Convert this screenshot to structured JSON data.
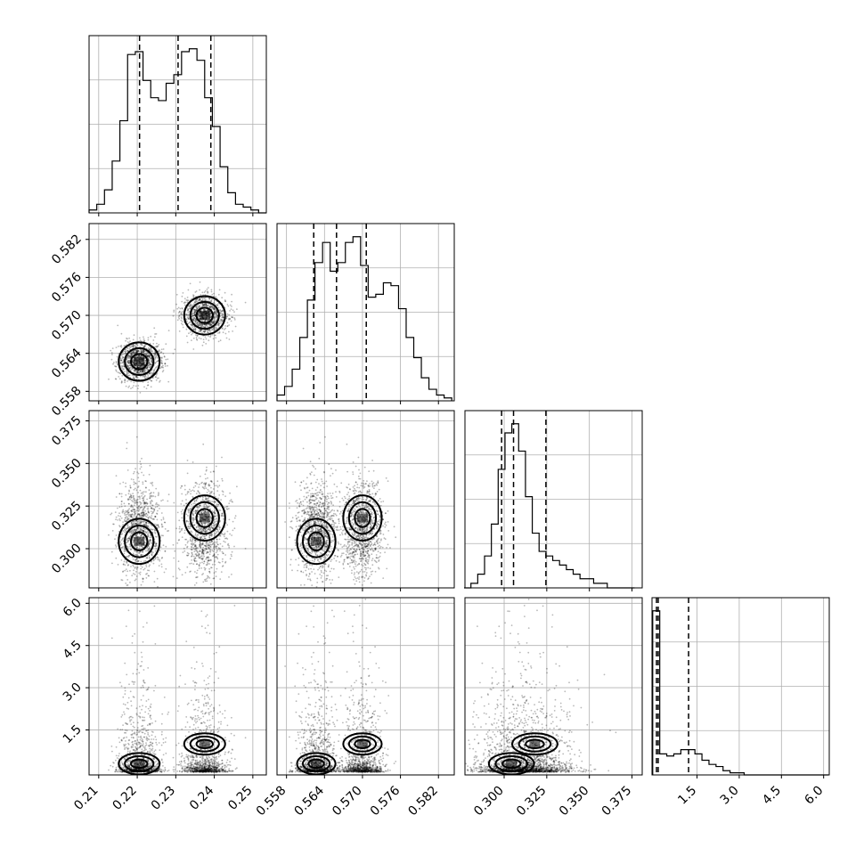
{
  "chart_data": {
    "type": "corner",
    "parameters": [
      {
        "range": [
          0.2075,
          0.2535
        ],
        "ticks": [
          0.21,
          0.22,
          0.23,
          0.24,
          0.25
        ],
        "ticklabels": [
          "0.21",
          "0.22",
          "0.23",
          "0.24",
          "0.25"
        ],
        "quantiles": [
          0.2206,
          0.2306,
          0.2391
        ],
        "hist_centers": [
          0.2085,
          0.2105,
          0.2125,
          0.2145,
          0.2165,
          0.2185,
          0.2205,
          0.2225,
          0.2245,
          0.2265,
          0.2285,
          0.2305,
          0.2325,
          0.2345,
          0.2365,
          0.2385,
          0.2405,
          0.2425,
          0.2445,
          0.2465,
          0.2485,
          0.2505,
          0.2525
        ],
        "hist_counts": [
          1,
          3,
          8,
          18,
          32,
          55,
          56,
          46,
          40,
          39,
          45,
          48,
          56,
          57,
          53,
          40,
          30,
          16,
          7,
          3,
          2,
          1,
          0
        ]
      },
      {
        "range": [
          0.5565,
          0.5845
        ],
        "ticks": [
          0.558,
          0.564,
          0.57,
          0.576,
          0.582
        ],
        "ticklabels": [
          "0.558",
          "0.564",
          "0.570",
          "0.576",
          "0.582"
        ],
        "quantiles": [
          0.5623,
          0.5659,
          0.5706
        ],
        "hist_centers": [
          0.5571,
          0.5583,
          0.5595,
          0.5607,
          0.5619,
          0.5631,
          0.5643,
          0.5655,
          0.5667,
          0.5679,
          0.5691,
          0.5703,
          0.5715,
          0.5727,
          0.5739,
          0.5751,
          0.5763,
          0.5775,
          0.5787,
          0.5799,
          0.5811,
          0.5823,
          0.5835
        ],
        "hist_counts": [
          2,
          5,
          11,
          22,
          35,
          48,
          55,
          45,
          48,
          55,
          57,
          47,
          36,
          37,
          41,
          40,
          32,
          22,
          15,
          8,
          4,
          2,
          1
        ]
      },
      {
        "range": [
          0.277,
          0.381
        ],
        "ticks": [
          0.3,
          0.325,
          0.35,
          0.375
        ],
        "ticklabels": [
          "0.300",
          "0.325",
          "0.350",
          "0.375"
        ],
        "quantiles": [
          0.2985,
          0.3055,
          0.3245
        ],
        "hist_centers": [
          0.2785,
          0.2825,
          0.2865,
          0.2905,
          0.2945,
          0.2985,
          0.3025,
          0.3065,
          0.3105,
          0.3145,
          0.3185,
          0.3225,
          0.3265,
          0.3305,
          0.3345,
          0.3385,
          0.3425,
          0.3465,
          0.3505,
          0.3545,
          0.3585,
          0.3625,
          0.3665,
          0.3705,
          0.3745
        ],
        "hist_counts": [
          0,
          1,
          3,
          7,
          14,
          26,
          34,
          36,
          30,
          20,
          12,
          8,
          7,
          6,
          5,
          4,
          3,
          2,
          2,
          1,
          1,
          0,
          0,
          0,
          0
        ],
        "scatter_cloud": {
          "mean": 0.312,
          "sd": 0.014
        }
      },
      {
        "range": [
          -0.1,
          6.2
        ],
        "ticks": [
          1.5,
          3.0,
          4.5,
          6.0
        ],
        "ticklabels": [
          "1.5",
          "3.0",
          "4.5",
          "6.0"
        ],
        "quantiles": [
          0.06,
          0.12,
          1.2
        ],
        "hist_centers": [
          0.05,
          0.3,
          0.55,
          0.8,
          1.05,
          1.3,
          1.55,
          1.8,
          2.05,
          2.3,
          2.55,
          2.8,
          3.05,
          3.3,
          3.55,
          3.8,
          4.05,
          4.3,
          4.55,
          4.8,
          5.05,
          5.3,
          5.55,
          5.8,
          6.05
        ],
        "hist_counts": [
          78,
          10,
          9,
          10,
          12,
          12,
          10,
          7,
          5,
          4,
          2,
          1,
          1,
          0,
          0,
          0,
          0,
          0,
          0,
          0,
          0,
          0,
          0,
          0,
          0
        ]
      }
    ],
    "modes": [
      {
        "p0": 0.2205,
        "p1": 0.5627,
        "p2": 0.3043,
        "p3": 0.3
      },
      {
        "p0": 0.2375,
        "p1": 0.57,
        "p2": 0.318,
        "p3": 1.0
      }
    ],
    "grid": true,
    "contour_levels": 3
  }
}
